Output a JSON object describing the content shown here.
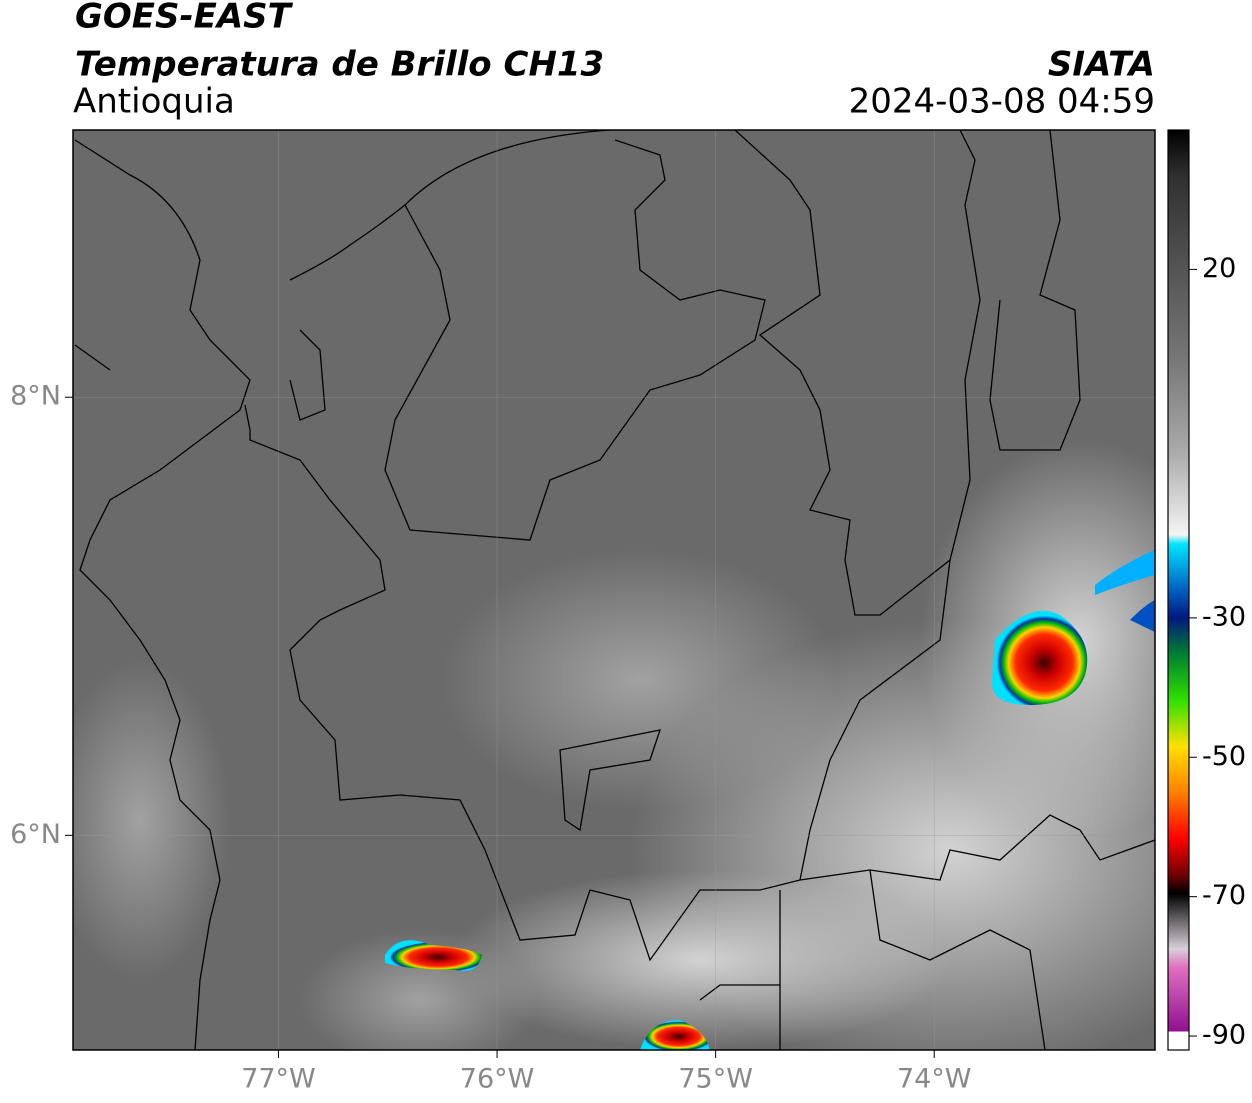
{
  "header": {
    "title": "GOES-EAST",
    "subtitle": "Temperatura de Brillo CH13",
    "region": "Antioquia",
    "source": "SIATA",
    "datetime": "2024-03-08 04:59"
  },
  "map": {
    "xlim": [
      -77.94,
      -72.99
    ],
    "ylim": [
      5.02,
      9.22
    ],
    "xticks": [
      {
        "value": -77,
        "label": "77°W"
      },
      {
        "value": -76,
        "label": "76°W"
      },
      {
        "value": -75,
        "label": "75°W"
      },
      {
        "value": -74,
        "label": "74°W"
      }
    ],
    "yticks": [
      {
        "value": 8,
        "label": "8°N"
      },
      {
        "value": 6,
        "label": "6°N"
      }
    ],
    "grid": true
  },
  "colorbar": {
    "clim": [
      -92,
      40
    ],
    "ticks": [
      20,
      -30,
      -50,
      -70,
      -90
    ]
  }
}
